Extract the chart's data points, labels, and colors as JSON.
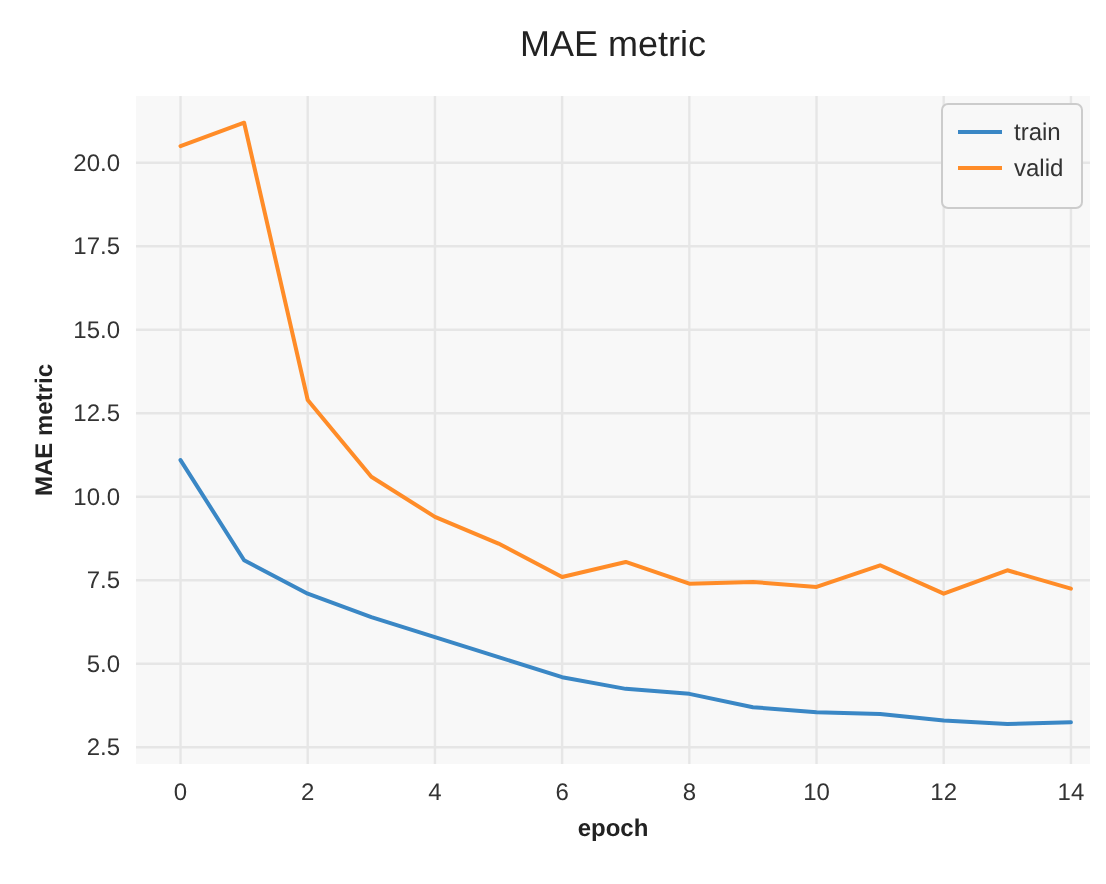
{
  "chart_data": {
    "type": "line",
    "title": "MAE metric",
    "xlabel": "epoch",
    "ylabel": "MAE metric",
    "x": [
      0,
      1,
      2,
      3,
      4,
      5,
      6,
      7,
      8,
      9,
      10,
      11,
      12,
      13,
      14
    ],
    "series": [
      {
        "name": "train",
        "color": "#3a87c5",
        "values": [
          11.1,
          8.1,
          7.1,
          6.4,
          5.8,
          5.2,
          4.6,
          4.25,
          4.1,
          3.7,
          3.55,
          3.5,
          3.3,
          3.2,
          3.25
        ]
      },
      {
        "name": "valid",
        "color": "#ff8c28",
        "values": [
          20.5,
          21.2,
          12.9,
          10.6,
          9.4,
          8.6,
          7.6,
          8.05,
          7.4,
          7.45,
          7.3,
          7.95,
          7.1,
          7.8,
          7.25
        ]
      }
    ],
    "xlim": [
      -0.7,
      14.3
    ],
    "ylim": [
      2.0,
      22.0
    ],
    "xticks": [
      0,
      2,
      4,
      6,
      8,
      10,
      12,
      14
    ],
    "yticks": [
      {
        "value": 2.5,
        "label": "2.5"
      },
      {
        "value": 5,
        "label": "5.0"
      },
      {
        "value": 7.5,
        "label": "7.5"
      },
      {
        "value": 10,
        "label": "10.0"
      },
      {
        "value": 12.5,
        "label": "12.5"
      },
      {
        "value": 15,
        "label": "15.0"
      },
      {
        "value": 17.5,
        "label": "17.5"
      },
      {
        "value": 20,
        "label": "20.0"
      }
    ],
    "grid": true,
    "legend": "top right",
    "line_style": "solid",
    "marker": "none"
  }
}
